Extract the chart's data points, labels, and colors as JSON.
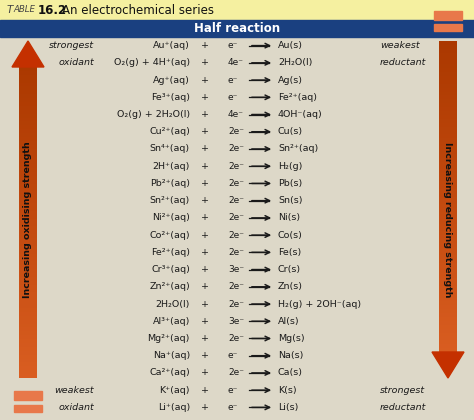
{
  "title_prefix": "TABLE",
  "title_number": "16.2",
  "title_rest": "An electrochemical series",
  "header": "Half reaction",
  "header_bg": "#1a4080",
  "header_fg": "#ffffff",
  "title_bg": "#f5f0a0",
  "table_bg": "#ddd8c8",
  "rows": [
    [
      "strongest",
      "Au⁺(aq)",
      "+",
      "e⁻",
      "Au(s)",
      "weakest"
    ],
    [
      "oxidant",
      "O₂(g) + 4H⁺(aq)",
      "+",
      "4e⁻",
      "2H₂O(l)",
      "reductant"
    ],
    [
      "",
      "Ag⁺(aq)",
      "+",
      "e⁻",
      "Ag(s)",
      ""
    ],
    [
      "",
      "Fe³⁺(aq)",
      "+",
      "e⁻",
      "Fe²⁺(aq)",
      ""
    ],
    [
      "",
      "O₂(g) + 2H₂O(l)",
      "+",
      "4e⁻",
      "4OH⁻(aq)",
      ""
    ],
    [
      "",
      "Cu²⁺(aq)",
      "+",
      "2e⁻",
      "Cu(s)",
      ""
    ],
    [
      "",
      "Sn⁴⁺(aq)",
      "+",
      "2e⁻",
      "Sn²⁺(aq)",
      ""
    ],
    [
      "",
      "2H⁺(aq)",
      "+",
      "2e⁻",
      "H₂(g)",
      ""
    ],
    [
      "",
      "Pb²⁺(aq)",
      "+",
      "2e⁻",
      "Pb(s)",
      ""
    ],
    [
      "",
      "Sn²⁺(aq)",
      "+",
      "2e⁻",
      "Sn(s)",
      ""
    ],
    [
      "",
      "Ni²⁺(aq)",
      "+",
      "2e⁻",
      "Ni(s)",
      ""
    ],
    [
      "",
      "Co²⁺(aq)",
      "+",
      "2e⁻",
      "Co(s)",
      ""
    ],
    [
      "",
      "Fe²⁺(aq)",
      "+",
      "2e⁻",
      "Fe(s)",
      ""
    ],
    [
      "",
      "Cr³⁺(aq)",
      "+",
      "3e⁻",
      "Cr(s)",
      ""
    ],
    [
      "",
      "Zn²⁺(aq)",
      "+",
      "2e⁻",
      "Zn(s)",
      ""
    ],
    [
      "",
      "2H₂O(l)",
      "+",
      "2e⁻",
      "H₂(g) + 2OH⁻(aq)",
      ""
    ],
    [
      "",
      "Al³⁺(aq)",
      "+",
      "3e⁻",
      "Al(s)",
      ""
    ],
    [
      "",
      "Mg²⁺(aq)",
      "+",
      "2e⁻",
      "Mg(s)",
      ""
    ],
    [
      "",
      "Na⁺(aq)",
      "+",
      "e⁻",
      "Na(s)",
      ""
    ],
    [
      "",
      "Ca²⁺(aq)",
      "+",
      "2e⁻",
      "Ca(s)",
      ""
    ],
    [
      "weakest",
      "K⁺(aq)",
      "+",
      "e⁻",
      "K(s)",
      "strongest"
    ],
    [
      "oxidant",
      "Li⁺(aq)",
      "+",
      "e⁻",
      "Li(s)",
      "reductant"
    ]
  ],
  "arrow_color_dark": "#c43000",
  "arrow_color_light": "#e8784a",
  "left_label": "Increasing oxidising strength",
  "right_label": "Increasing reducing strength",
  "text_color": "#1a1a1a",
  "font_size": 6.8,
  "header_font_size": 8.5
}
